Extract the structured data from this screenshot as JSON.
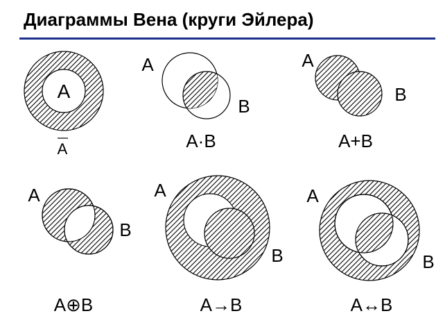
{
  "title": "Диаграммы Вена (круги Эйлера)",
  "colors": {
    "rule": "#1d2f8c",
    "ink": "#000000",
    "background": "#ffffff"
  },
  "diagrams": [
    {
      "id": "not-a",
      "set_label": "A",
      "caption": "A",
      "caption_overline": true
    },
    {
      "id": "and",
      "label_a": "A",
      "label_b": "B",
      "caption": "A·B"
    },
    {
      "id": "or",
      "label_a": "A",
      "label_b": "B",
      "caption": "A+B"
    },
    {
      "id": "xor",
      "label_a": "A",
      "label_b": "B",
      "caption": "A⊕B"
    },
    {
      "id": "implication",
      "label_a": "A",
      "label_b": "B",
      "caption": "A→B"
    },
    {
      "id": "equivalence",
      "label_a": "A",
      "label_b": "B",
      "caption": "A↔B"
    }
  ]
}
